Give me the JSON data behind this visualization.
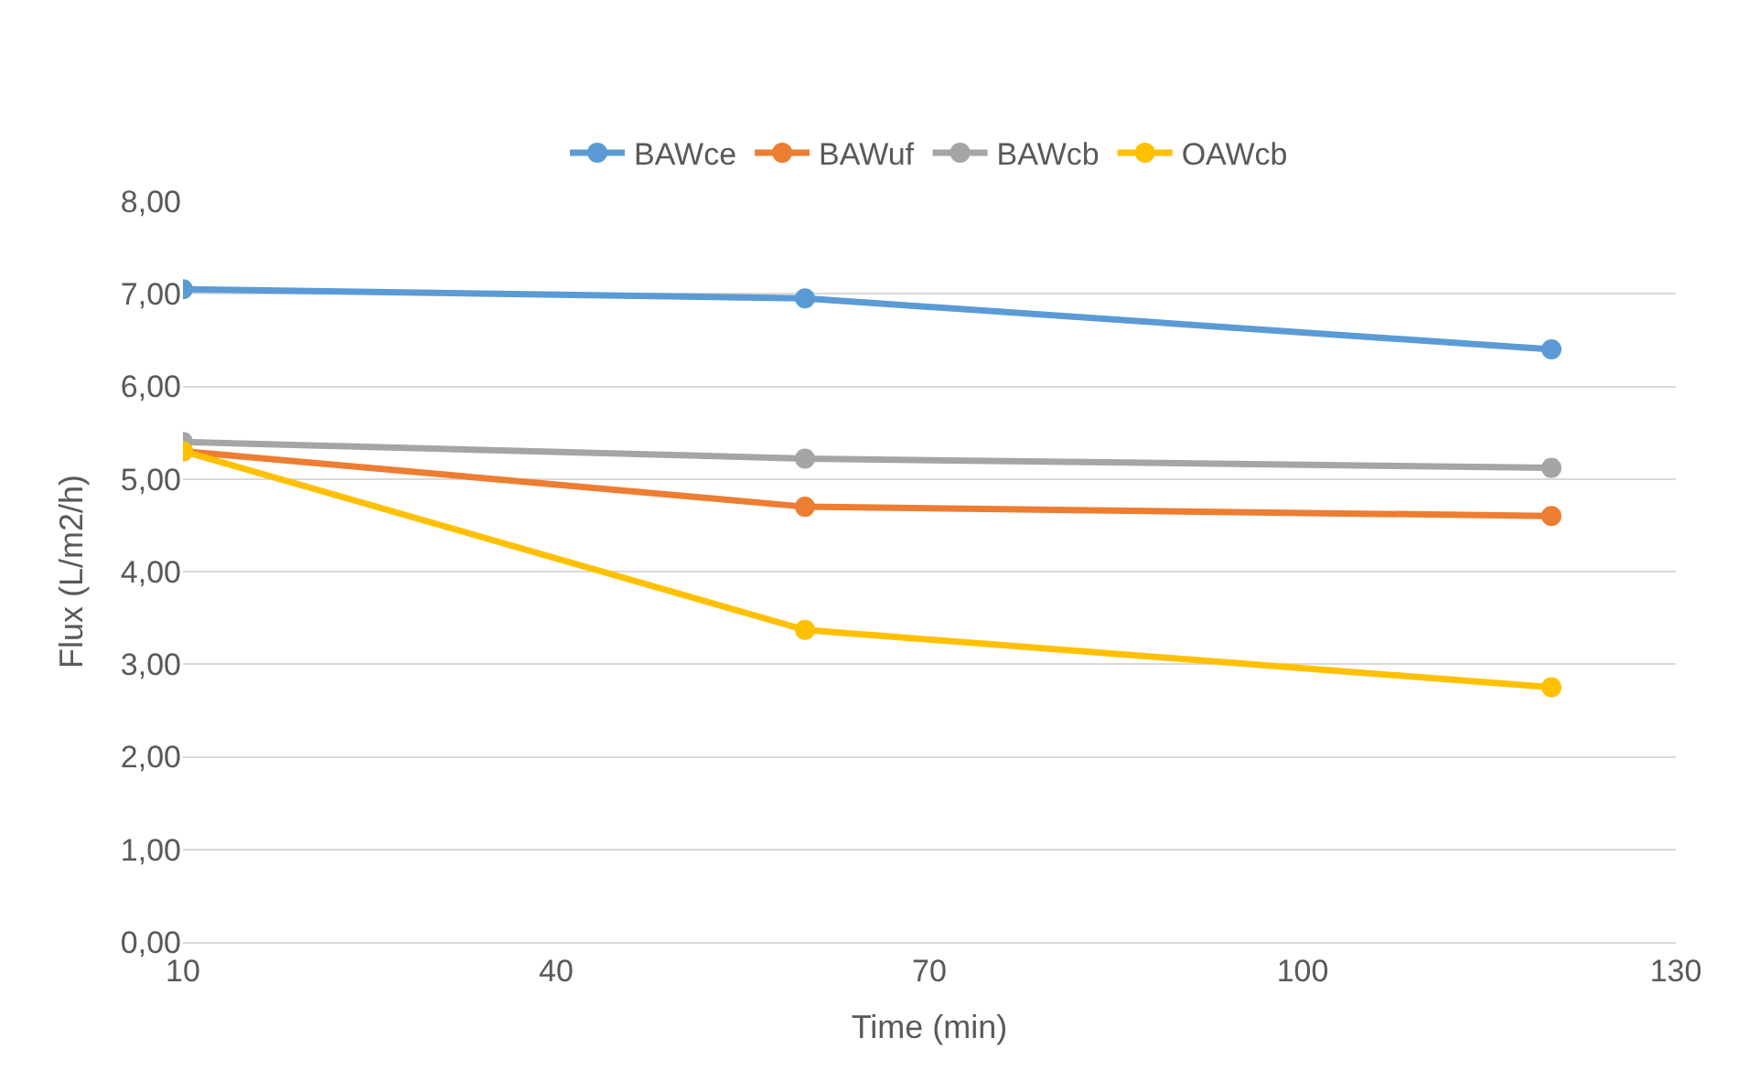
{
  "chart_data": {
    "type": "line",
    "xlabel": "Time (min)",
    "ylabel": "Flux (L/m2/h)",
    "x": [
      10,
      60,
      120
    ],
    "series": [
      {
        "name": "BAWce",
        "color": "#5b9bd5",
        "values": [
          7.05,
          6.95,
          6.4
        ]
      },
      {
        "name": "BAWuf",
        "color": "#ed7d31",
        "values": [
          5.3,
          4.7,
          4.6
        ]
      },
      {
        "name": "BAWcb",
        "color": "#a5a5a5",
        "values": [
          5.4,
          5.22,
          5.12
        ]
      },
      {
        "name": "OAWcb",
        "color": "#ffc000",
        "values": [
          5.3,
          3.37,
          2.75
        ]
      }
    ],
    "xlim": [
      10,
      130
    ],
    "xticks": [
      10,
      40,
      70,
      100,
      130
    ],
    "ylim": [
      0,
      8
    ],
    "yticks": [
      {
        "value": 0,
        "label": "0,00"
      },
      {
        "value": 1,
        "label": "1,00"
      },
      {
        "value": 2,
        "label": "2,00"
      },
      {
        "value": 3,
        "label": "3,00"
      },
      {
        "value": 4,
        "label": "4,00"
      },
      {
        "value": 5,
        "label": "5,00"
      },
      {
        "value": 6,
        "label": "6,00"
      },
      {
        "value": 7,
        "label": "7,00"
      },
      {
        "value": 8,
        "label": "8,00"
      }
    ],
    "grid": "y",
    "legend": "top",
    "marker": "circle",
    "line_style": "solid"
  }
}
